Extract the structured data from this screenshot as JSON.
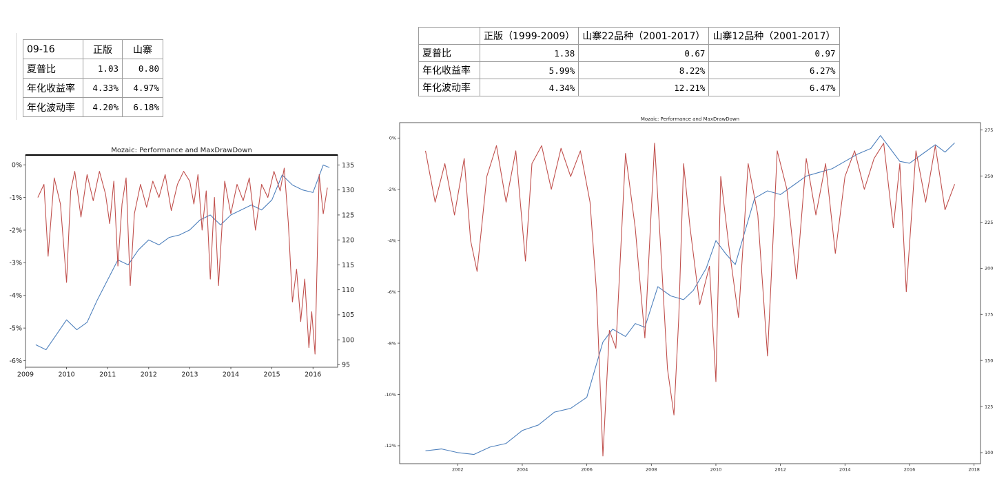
{
  "table_small": {
    "header": [
      "09-16",
      "正版",
      "山寨"
    ],
    "rows": [
      [
        "夏普比",
        "1.03",
        "0.80"
      ],
      [
        "年化收益率",
        "4.33%",
        "4.97%"
      ],
      [
        "年化波动率",
        "4.20%",
        "6.18%"
      ]
    ]
  },
  "table_large": {
    "header": [
      "",
      "正版（1999-2009）",
      "山寨22品种（2001-2017）",
      "山寨12品种（2001-2017）"
    ],
    "rows": [
      [
        "夏普比",
        "1.38",
        "0.67",
        "0.97"
      ],
      [
        "年化收益率",
        "5.99%",
        "8.22%",
        "6.27%"
      ],
      [
        "年化波动率",
        "4.34%",
        "12.21%",
        "6.47%"
      ]
    ]
  },
  "colors": {
    "performance": "#4f81bd",
    "drawdown": "#c0504d"
  },
  "chart_data": [
    {
      "type": "line",
      "title": "Mozaic: Performance and MaxDrawDown",
      "x_ticks": [
        "2009",
        "2010",
        "2011",
        "2012",
        "2013",
        "2014",
        "2015",
        "2016"
      ],
      "y_left_ticks": [
        "0%",
        "-1%",
        "-2%",
        "-3%",
        "-4%",
        "-5%",
        "-6%"
      ],
      "y_right_ticks": [
        "135",
        "130",
        "125",
        "120",
        "115",
        "110",
        "105",
        "100",
        "95"
      ],
      "xlim": [
        2009.0,
        2016.6
      ],
      "ylim_left": [
        -6.2,
        0.3
      ],
      "ylim_right": [
        94.5,
        137.0
      ],
      "series": [
        {
          "axis": "right",
          "color": "#4f81bd",
          "x": [
            2009.25,
            2009.5,
            2009.75,
            2010.0,
            2010.25,
            2010.5,
            2010.75,
            2011.0,
            2011.25,
            2011.5,
            2011.75,
            2012.0,
            2012.25,
            2012.5,
            2012.75,
            2013.0,
            2013.25,
            2013.5,
            2013.75,
            2014.0,
            2014.25,
            2014.5,
            2014.75,
            2015.0,
            2015.25,
            2015.5,
            2015.75,
            2016.0,
            2016.25,
            2016.4
          ],
          "values": [
            99,
            98,
            101,
            104,
            102,
            103.5,
            108,
            112,
            116,
            115,
            118,
            120,
            119,
            120.5,
            121,
            122,
            124,
            125,
            123,
            125,
            126,
            127,
            126,
            128,
            133,
            131,
            130,
            129.5,
            135,
            134.5
          ]
        },
        {
          "axis": "left",
          "color": "#c0504d",
          "x": [
            2009.3,
            2009.45,
            2009.55,
            2009.7,
            2009.85,
            2010.0,
            2010.1,
            2010.2,
            2010.35,
            2010.5,
            2010.65,
            2010.8,
            2010.95,
            2011.05,
            2011.15,
            2011.25,
            2011.35,
            2011.45,
            2011.55,
            2011.65,
            2011.8,
            2011.95,
            2012.1,
            2012.25,
            2012.4,
            2012.55,
            2012.7,
            2012.85,
            2013.0,
            2013.1,
            2013.2,
            2013.3,
            2013.4,
            2013.5,
            2013.6,
            2013.7,
            2013.85,
            2014.0,
            2014.15,
            2014.3,
            2014.45,
            2014.6,
            2014.75,
            2014.9,
            2015.05,
            2015.2,
            2015.3,
            2015.4,
            2015.5,
            2015.6,
            2015.7,
            2015.8,
            2015.9,
            2015.97,
            2016.05,
            2016.15,
            2016.25,
            2016.35
          ],
          "values": [
            -1.0,
            -0.6,
            -2.8,
            -0.4,
            -1.2,
            -3.6,
            -0.8,
            -0.2,
            -1.6,
            -0.3,
            -1.1,
            -0.2,
            -0.9,
            -1.8,
            -0.5,
            -3.1,
            -1.2,
            -0.4,
            -3.7,
            -1.5,
            -0.6,
            -1.3,
            -0.5,
            -1.0,
            -0.3,
            -1.4,
            -0.6,
            -0.2,
            -0.5,
            -1.2,
            -0.3,
            -2.0,
            -0.8,
            -3.5,
            -1.0,
            -3.7,
            -0.5,
            -1.5,
            -0.6,
            -1.1,
            -0.4,
            -2.0,
            -0.6,
            -1.0,
            -0.2,
            -0.8,
            -0.1,
            -1.8,
            -4.2,
            -3.2,
            -4.8,
            -3.5,
            -5.6,
            -4.5,
            -5.8,
            -0.3,
            -1.5,
            -0.7
          ]
        }
      ]
    },
    {
      "type": "line",
      "title": "Mozaic: Performance and MaxDrawDown",
      "x_ticks": [
        "2002",
        "2004",
        "2006",
        "2008",
        "2010",
        "2012",
        "2014",
        "2016",
        "2018"
      ],
      "y_left_ticks": [
        "0%",
        "-2%",
        "-4%",
        "-6%",
        "-8%",
        "-10%",
        "-12%"
      ],
      "y_right_ticks": [
        "275",
        "250",
        "225",
        "200",
        "175",
        "150",
        "125",
        "100"
      ],
      "xlim": [
        2000.2,
        2018.2
      ],
      "ylim_left": [
        -12.7,
        0.6
      ],
      "ylim_right": [
        94,
        279
      ],
      "series": [
        {
          "axis": "right",
          "color": "#4f81bd",
          "x": [
            2001.0,
            2001.5,
            2002.0,
            2002.5,
            2003.0,
            2003.5,
            2004.0,
            2004.5,
            2005.0,
            2005.5,
            2006.0,
            2006.5,
            2006.8,
            2007.2,
            2007.5,
            2007.8,
            2008.2,
            2008.6,
            2009.0,
            2009.3,
            2009.7,
            2010.0,
            2010.3,
            2010.6,
            2010.9,
            2011.2,
            2011.6,
            2012.0,
            2012.4,
            2012.8,
            2013.2,
            2013.6,
            2014.0,
            2014.4,
            2014.8,
            2015.1,
            2015.4,
            2015.7,
            2016.0,
            2016.4,
            2016.8,
            2017.1,
            2017.4
          ],
          "values": [
            101,
            102,
            100,
            99,
            103,
            105,
            112,
            115,
            122,
            124,
            130,
            160,
            167,
            163,
            170,
            168,
            190,
            185,
            183,
            188,
            200,
            215,
            208,
            202,
            220,
            238,
            242,
            240,
            245,
            250,
            252,
            254,
            258,
            262,
            265,
            272,
            265,
            258,
            257,
            262,
            267,
            263,
            268
          ]
        },
        {
          "axis": "left",
          "color": "#c0504d",
          "x": [
            2001.0,
            2001.3,
            2001.6,
            2001.9,
            2002.2,
            2002.4,
            2002.6,
            2002.9,
            2003.2,
            2003.5,
            2003.8,
            2004.1,
            2004.3,
            2004.6,
            2004.9,
            2005.2,
            2005.5,
            2005.8,
            2006.1,
            2006.3,
            2006.5,
            2006.7,
            2006.9,
            2007.2,
            2007.5,
            2007.8,
            2008.1,
            2008.3,
            2008.5,
            2008.7,
            2008.85,
            2009.0,
            2009.2,
            2009.5,
            2009.8,
            2010.0,
            2010.15,
            2010.4,
            2010.7,
            2011.0,
            2011.3,
            2011.6,
            2011.9,
            2012.2,
            2012.5,
            2012.8,
            2013.1,
            2013.4,
            2013.7,
            2014.0,
            2014.3,
            2014.6,
            2014.9,
            2015.2,
            2015.5,
            2015.7,
            2015.9,
            2016.2,
            2016.5,
            2016.8,
            2017.1,
            2017.4
          ],
          "values": [
            -0.5,
            -2.5,
            -1.0,
            -3.0,
            -0.8,
            -4.0,
            -5.2,
            -1.5,
            -0.3,
            -2.5,
            -0.5,
            -4.8,
            -1.0,
            -0.3,
            -2.0,
            -0.4,
            -1.5,
            -0.5,
            -2.5,
            -6.0,
            -12.4,
            -7.5,
            -8.2,
            -0.6,
            -3.5,
            -7.8,
            -0.2,
            -4.5,
            -9.0,
            -10.8,
            -7.0,
            -1.0,
            -3.5,
            -6.5,
            -5.0,
            -9.5,
            -1.5,
            -4.2,
            -7.0,
            -1.0,
            -3.0,
            -8.5,
            -0.5,
            -2.0,
            -5.5,
            -0.8,
            -3.0,
            -1.0,
            -4.5,
            -1.5,
            -0.5,
            -2.0,
            -0.8,
            -0.2,
            -3.5,
            -1.0,
            -6.0,
            -0.5,
            -2.5,
            -0.3,
            -2.8,
            -1.8
          ]
        }
      ]
    }
  ]
}
